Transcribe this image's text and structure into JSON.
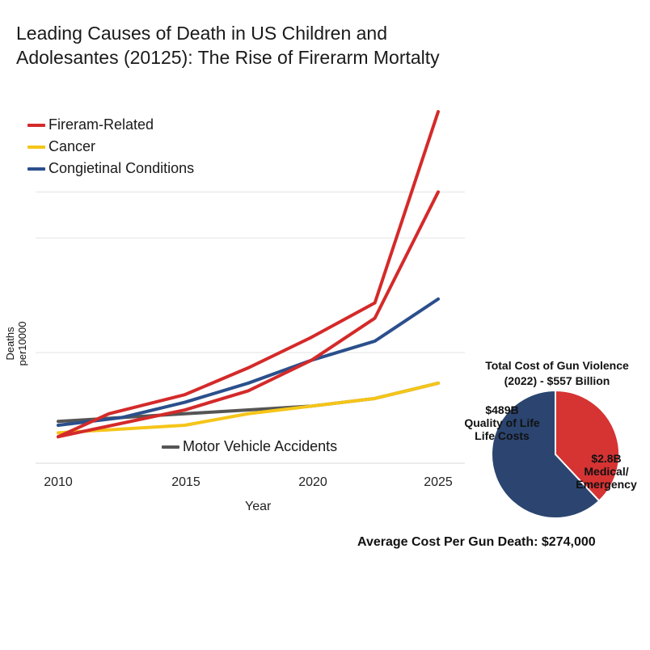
{
  "chart_data": [
    {
      "type": "line",
      "title_lines": [
        "Leading Causes of Death in US Children and",
        "Adolesantes (20125): The Rise of Firerarm Mortalty"
      ],
      "xlabel": "Year",
      "ylabel": "Deaths per10000",
      "x_ticks": [
        "2010",
        "2015",
        "2020",
        "2025"
      ],
      "xlim": [
        2010,
        2025
      ],
      "ylim": [
        0,
        100
      ],
      "grid": "horizontal",
      "legend_placement": "top-left",
      "series": [
        {
          "name": "Fireram-Related",
          "color": "#d42a2a",
          "points": [
            [
              2010,
              8
            ],
            [
              2012,
              14
            ],
            [
              2015,
              19
            ],
            [
              2017.5,
              26
            ],
            [
              2020,
              34
            ],
            [
              2022.5,
              43
            ],
            [
              2025,
              93
            ]
          ]
        },
        {
          "name": "Cancer",
          "color": "#f5c518",
          "points": [
            [
              2010,
              9
            ],
            [
              2015,
              11
            ],
            [
              2017.5,
              14
            ],
            [
              2020,
              16
            ],
            [
              2022.5,
              18
            ],
            [
              2025,
              22
            ]
          ]
        },
        {
          "name": "Congietinal Conditions",
          "color": "#2b4f8c",
          "points": [
            [
              2010,
              11
            ],
            [
              2012.5,
              13
            ],
            [
              2015,
              17
            ],
            [
              2017.5,
              22
            ],
            [
              2020,
              28
            ],
            [
              2022.5,
              33
            ],
            [
              2025,
              44
            ]
          ]
        },
        {
          "name": "Motor Vehicle Accidents",
          "color": "#555555",
          "points": [
            [
              2010,
              12
            ],
            [
              2015,
              14
            ],
            [
              2020,
              16
            ],
            [
              2022.5,
              18
            ],
            [
              2025,
              22
            ]
          ]
        },
        {
          "name": "",
          "color": "#d42a2a",
          "points": [
            [
              2010,
              8
            ],
            [
              2015,
              15
            ],
            [
              2017.5,
              20
            ],
            [
              2020,
              28
            ],
            [
              2022.5,
              39
            ],
            [
              2025,
              72
            ]
          ]
        }
      ]
    },
    {
      "type": "pie",
      "title_lines": [
        "Total Cost of Gun Violence",
        "(2022) - $557 Billion"
      ],
      "slices": [
        {
          "label_lines": [
            "$489B",
            "Quality of Life",
            "Life Costs"
          ],
          "color": "#2b4570",
          "value": 62
        },
        {
          "label_lines": [
            "$2.8B",
            "Medical/",
            "Emergency"
          ],
          "color": "#d63333",
          "value": 38
        }
      ]
    }
  ],
  "footer_text": "Average Cost Per Gun Death: $274,000"
}
